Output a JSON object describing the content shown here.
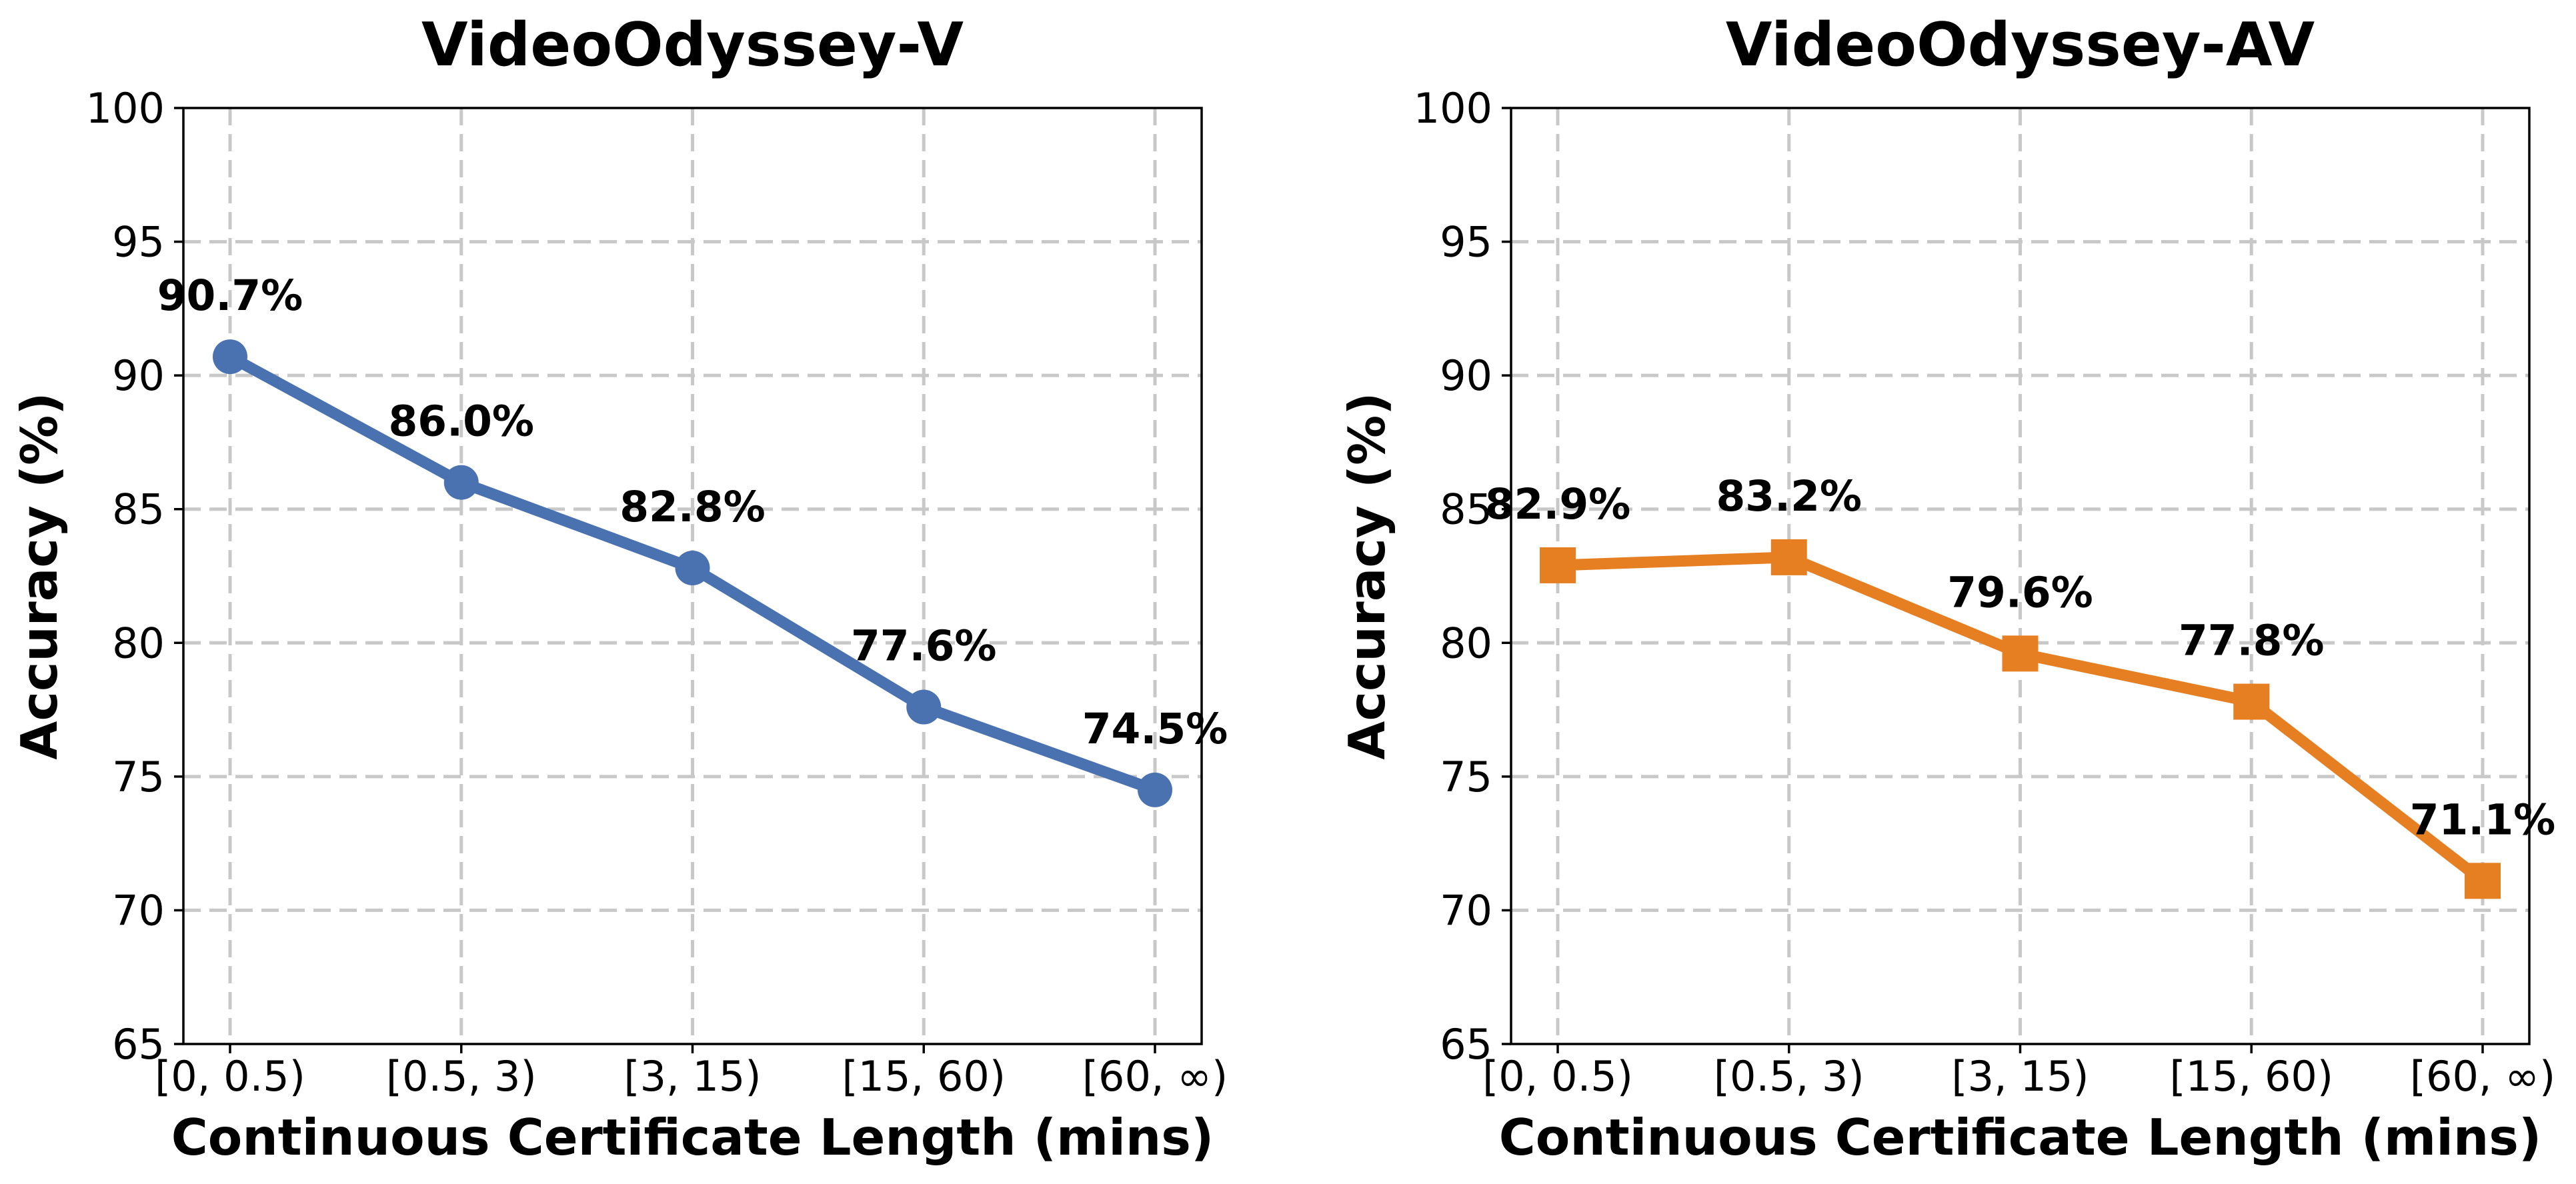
{
  "chart_data": [
    {
      "type": "line",
      "title": "VideoOdyssey-V",
      "xlabel": "Continuous Certificate Length (mins)",
      "ylabel": "Accuracy (%)",
      "categories": [
        "[0, 0.5)",
        "[0.5, 3)",
        "[3, 15)",
        "[15, 60)",
        "[60, ∞)"
      ],
      "yticks": [
        65,
        70,
        75,
        80,
        85,
        90,
        95,
        100
      ],
      "ylim": [
        65,
        100
      ],
      "grid": true,
      "series": [
        {
          "values": [
            90.7,
            86.0,
            82.8,
            77.6,
            74.5
          ],
          "labels": [
            "90.7%",
            "86.0%",
            "82.8%",
            "77.6%",
            "74.5%"
          ],
          "color": "#4a72b0",
          "marker": "circle"
        }
      ]
    },
    {
      "type": "line",
      "title": "VideoOdyssey-AV",
      "xlabel": "Continuous Certificate Length (mins)",
      "ylabel": "Accuracy (%)",
      "categories": [
        "[0, 0.5)",
        "[0.5, 3)",
        "[3, 15)",
        "[15, 60)",
        "[60, ∞)"
      ],
      "yticks": [
        65,
        70,
        75,
        80,
        85,
        90,
        95,
        100
      ],
      "ylim": [
        65,
        100
      ],
      "grid": true,
      "series": [
        {
          "values": [
            82.9,
            83.2,
            79.6,
            77.8,
            71.1
          ],
          "labels": [
            "82.9%",
            "83.2%",
            "79.6%",
            "77.8%",
            "71.1%"
          ],
          "color": "#e67e22",
          "marker": "square"
        }
      ]
    }
  ]
}
